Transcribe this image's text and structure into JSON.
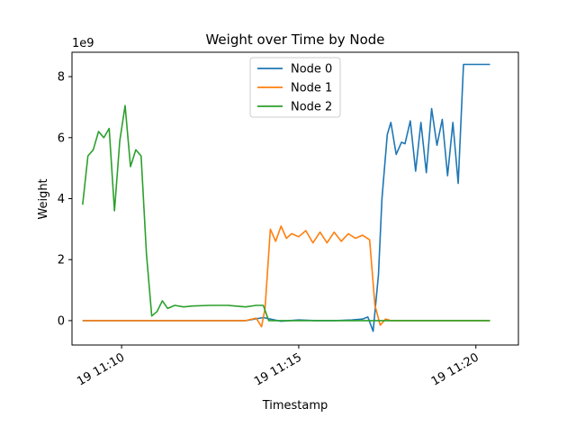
{
  "chart_data": {
    "type": "line",
    "title": "Weight over Time by Node",
    "xlabel": "Timestamp",
    "ylabel": "Weight",
    "y_multiplier_label": "1e9",
    "xlim_minutes": [
      8.6,
      21.2
    ],
    "ylim": [
      -0.8,
      8.8
    ],
    "x_ticks": [
      {
        "value": 10,
        "label": "19 11:10"
      },
      {
        "value": 15,
        "label": "19 11:15"
      },
      {
        "value": 20,
        "label": "19 11:20"
      }
    ],
    "y_ticks": [
      {
        "value": 0,
        "label": "0"
      },
      {
        "value": 2,
        "label": "2"
      },
      {
        "value": 4,
        "label": "4"
      },
      {
        "value": 6,
        "label": "6"
      },
      {
        "value": 8,
        "label": "8"
      }
    ],
    "grid": false,
    "legend_position": "top-center",
    "x_unit_note": "x values are minutes past 11:00",
    "series": [
      {
        "name": "Node 0",
        "color": "#1f77b4",
        "x": [
          8.9,
          9.5,
          10.0,
          10.5,
          11.0,
          11.5,
          12.0,
          12.5,
          13.0,
          13.5,
          14.0,
          14.2,
          14.5,
          15.0,
          15.5,
          16.0,
          16.5,
          16.8,
          16.95,
          17.1,
          17.25,
          17.35,
          17.5,
          17.6,
          17.75,
          17.9,
          18.0,
          18.15,
          18.3,
          18.45,
          18.6,
          18.75,
          18.9,
          19.05,
          19.2,
          19.35,
          19.5,
          19.65,
          19.8,
          19.95,
          20.1,
          20.25,
          20.4
        ],
        "values": [
          0.0,
          0.0,
          0.0,
          0.0,
          0.0,
          0.0,
          0.0,
          0.0,
          0.0,
          0.0,
          0.1,
          0.05,
          -0.02,
          0.02,
          0.0,
          0.0,
          0.02,
          0.05,
          0.12,
          -0.35,
          1.5,
          4.0,
          6.1,
          6.5,
          5.45,
          5.85,
          5.8,
          6.55,
          4.9,
          6.5,
          4.85,
          6.95,
          5.75,
          6.6,
          4.75,
          6.5,
          4.5,
          8.4,
          8.4,
          8.4,
          8.4,
          8.4,
          8.4
        ]
      },
      {
        "name": "Node 1",
        "color": "#ff7f0e",
        "x": [
          8.9,
          9.5,
          10.0,
          10.5,
          11.0,
          11.5,
          12.0,
          12.5,
          13.0,
          13.5,
          13.8,
          13.95,
          14.05,
          14.2,
          14.35,
          14.5,
          14.65,
          14.8,
          15.0,
          15.2,
          15.4,
          15.6,
          15.8,
          16.0,
          16.2,
          16.4,
          16.6,
          16.8,
          17.0,
          17.15,
          17.3,
          17.45,
          17.6,
          17.8,
          18.0,
          18.5,
          19.0,
          19.5,
          20.0,
          20.4
        ],
        "values": [
          0.0,
          0.0,
          0.0,
          0.0,
          0.0,
          0.0,
          0.0,
          0.0,
          0.0,
          0.0,
          0.08,
          -0.2,
          0.4,
          3.0,
          2.6,
          3.1,
          2.7,
          2.85,
          2.75,
          2.95,
          2.55,
          2.9,
          2.55,
          2.9,
          2.6,
          2.85,
          2.7,
          2.8,
          2.65,
          0.5,
          -0.15,
          0.05,
          0.0,
          0.0,
          0.0,
          0.0,
          0.0,
          0.0,
          0.0,
          0.0
        ]
      },
      {
        "name": "Node 2",
        "color": "#2ca02c",
        "x": [
          8.9,
          9.05,
          9.2,
          9.35,
          9.5,
          9.65,
          9.8,
          9.95,
          10.1,
          10.25,
          10.4,
          10.55,
          10.7,
          10.85,
          11.0,
          11.15,
          11.3,
          11.5,
          11.75,
          12.0,
          12.5,
          13.0,
          13.5,
          13.8,
          14.0,
          14.15,
          14.3,
          14.6,
          15.0,
          15.5,
          16.0,
          16.5,
          17.0,
          17.5,
          18.0,
          18.5,
          19.0,
          19.5,
          20.0,
          20.4
        ],
        "values": [
          3.8,
          5.4,
          5.6,
          6.2,
          6.0,
          6.3,
          3.6,
          5.9,
          7.05,
          5.05,
          5.6,
          5.4,
          2.2,
          0.15,
          0.3,
          0.65,
          0.4,
          0.5,
          0.45,
          0.48,
          0.5,
          0.5,
          0.45,
          0.5,
          0.5,
          0.0,
          0.0,
          0.0,
          0.0,
          0.0,
          0.0,
          0.0,
          0.0,
          0.0,
          0.0,
          0.0,
          0.0,
          0.0,
          0.0,
          0.0
        ]
      }
    ]
  }
}
